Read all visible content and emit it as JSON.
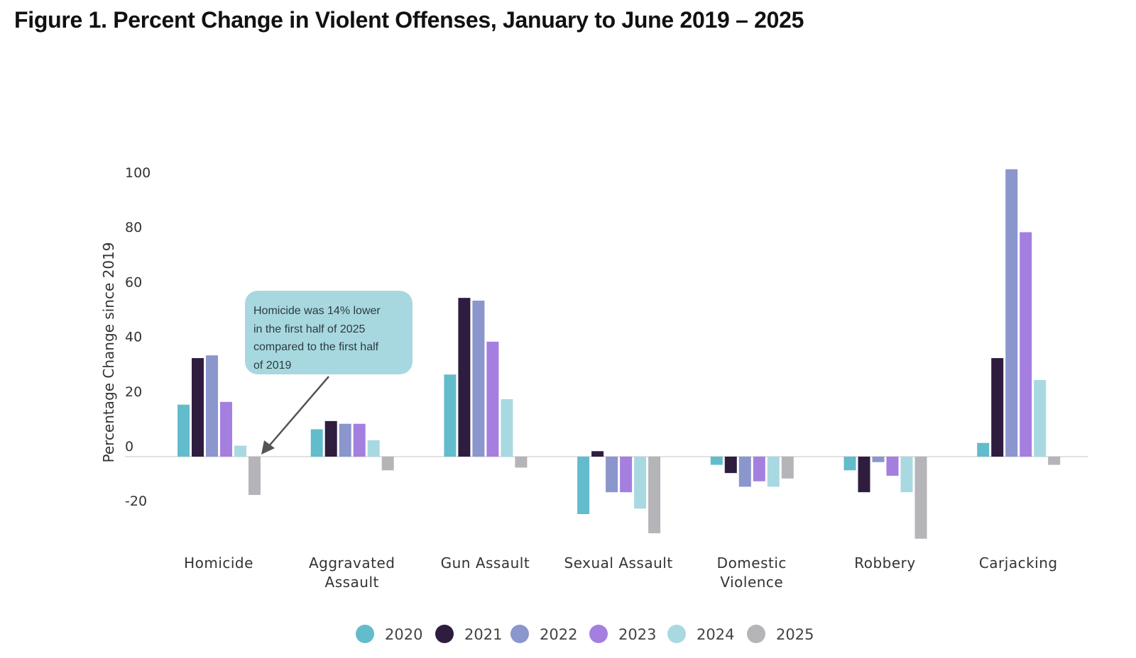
{
  "chart_data": {
    "type": "bar",
    "title": "Figure 1. Percent Change in Violent Offenses, January to June 2019 – 2025",
    "xlabel": "",
    "ylabel": "Percentage Change since 2019",
    "ylim": [
      -30,
      105
    ],
    "yticks": [
      100,
      80,
      60,
      40,
      20,
      0,
      -20
    ],
    "grid": false,
    "legend_position": "bottom-center",
    "categories": [
      [
        "Homicide"
      ],
      [
        "Aggravated",
        "Assault"
      ],
      [
        "Gun Assault"
      ],
      [
        "Sexual Assault"
      ],
      [
        "Domestic",
        "Violence"
      ],
      [
        "Robbery"
      ],
      [
        "Carjacking"
      ]
    ],
    "series": [
      {
        "name": "2020",
        "color": "#62bccc",
        "values": [
          19,
          10,
          30,
          -21,
          -3,
          -5,
          5
        ]
      },
      {
        "name": "2021",
        "color": "#2e1d3f",
        "values": [
          36,
          13,
          58,
          2,
          -6,
          -13,
          36
        ]
      },
      {
        "name": "2022",
        "color": "#8a96cc",
        "values": [
          37,
          12,
          57,
          -13,
          -11,
          -2,
          105
        ]
      },
      {
        "name": "2023",
        "color": "#a57fdf",
        "values": [
          20,
          12,
          42,
          -13,
          -9,
          -7,
          82
        ]
      },
      {
        "name": "2024",
        "color": "#a8d9e1",
        "values": [
          4,
          6,
          21,
          -19,
          -11,
          -13,
          28
        ]
      },
      {
        "name": "2025",
        "color": "#b5b5b9",
        "values": [
          -14,
          -5,
          -4,
          -28,
          -8,
          -30,
          -3
        ]
      }
    ],
    "annotation": {
      "text": "Homicide was 14% lower in the first half of 2025 compared to the first half of 2019",
      "lines": [
        "Homicide was 14% lower",
        "in the first half of 2025",
        "compared to the first half",
        "of 2019"
      ],
      "target": {
        "category": "Homicide",
        "series": "2025"
      }
    }
  }
}
